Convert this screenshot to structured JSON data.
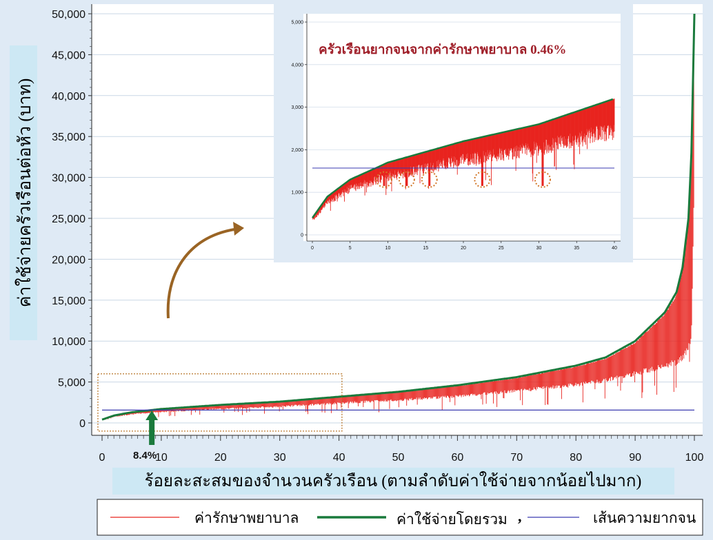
{
  "chart_data": {
    "type": "line",
    "xlabel": "ร้อยละสะสมของจำนวนครัวเรือน (ตามลำดับค่าใช้จ่ายจากน้อยไปมาก)",
    "ylabel": "ค่าใช้จ่ายครัวเรือนต่อหัว (บาท)",
    "xlim": [
      0,
      100
    ],
    "ylim": [
      0,
      50000
    ],
    "x_ticks": [
      0,
      10,
      20,
      30,
      40,
      50,
      60,
      70,
      80,
      90,
      100
    ],
    "y_ticks": [
      0,
      5000,
      10000,
      15000,
      20000,
      25000,
      30000,
      35000,
      40000,
      45000,
      50000
    ],
    "x_tick_labels": [
      "0",
      "10",
      "20",
      "30",
      "40",
      "50",
      "60",
      "70",
      "80",
      "90",
      "100"
    ],
    "y_tick_labels": [
      "0",
      "5,000",
      "10,000",
      "15,000",
      "20,000",
      "25,000",
      "30,000",
      "35,000",
      "40,000",
      "45,000",
      "50,000"
    ],
    "grid": true,
    "series": [
      {
        "name": "ค่าใช้จ่ายโดยรวม",
        "color": "#1a7a3c",
        "x": [
          0,
          2,
          5,
          8.4,
          10,
          20,
          30,
          40,
          50,
          60,
          70,
          80,
          85,
          90,
          95,
          97,
          98,
          99,
          99.5,
          100
        ],
        "y": [
          400,
          900,
          1300,
          1570,
          1700,
          2200,
          2600,
          3200,
          3800,
          4600,
          5600,
          7000,
          8000,
          10000,
          13500,
          16000,
          19000,
          25000,
          33000,
          50000
        ]
      },
      {
        "name": "ค่ารักษาพยาบาล",
        "color": "#e8241f",
        "x": [
          0,
          2,
          5,
          8.4,
          10,
          20,
          30,
          40,
          50,
          60,
          70,
          80,
          85,
          90,
          95,
          97,
          98,
          99,
          99.5,
          100
        ],
        "y": [
          350,
          800,
          1150,
          1350,
          1450,
          1850,
          2150,
          2600,
          3000,
          3500,
          4200,
          5000,
          5600,
          6500,
          7500,
          8000,
          8500,
          10000,
          11000,
          32000
        ]
      },
      {
        "name": "เส้นความยากจน",
        "color": "#3a3ab0",
        "x": [
          0,
          100
        ],
        "y": [
          1570,
          1570
        ]
      }
    ],
    "annotations": [
      {
        "text": "8.4%",
        "x": 8.4,
        "color": "#1a7a3c"
      }
    ],
    "legend": {
      "placement": "bottom",
      "entries": [
        {
          "label": "ค่ารักษาพยาบาล",
          "color": "#e8241f"
        },
        {
          "label": "ค่าใช้จ่ายโดยรวม",
          "color": "#1a7a3c"
        },
        {
          "label": "เส้นความยากจน",
          "color": "#3a3ab0"
        }
      ],
      "separator": ","
    },
    "inset": {
      "title": "ครัวเรือนยากจนจากค่ารักษาพยาบาล 0.46%",
      "title_color": "#a0202a",
      "xlim": [
        0,
        40
      ],
      "ylim": [
        0,
        5000
      ],
      "x_tick_labels": [
        "0",
        "5",
        "10",
        "15",
        "20",
        "25",
        "30",
        "35",
        "40"
      ],
      "y_tick_labels": [
        "0",
        "1,000",
        "2,000",
        "3,000",
        "4,000",
        "5,000"
      ],
      "circled_x": [
        9.5,
        12.5,
        15.5,
        22.5,
        30.5
      ],
      "circle_y": 1300
    }
  }
}
